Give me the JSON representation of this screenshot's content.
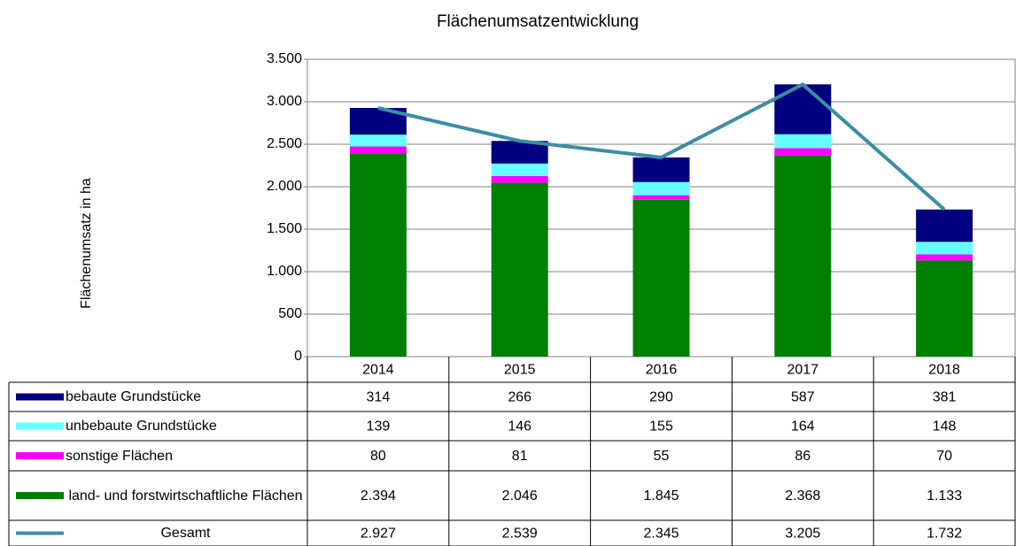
{
  "chart_data": {
    "type": "bar",
    "stacked": true,
    "title": "Flächenumsatzentwicklung",
    "y_label": "Flächenumsatz in ha",
    "categories": [
      "2014",
      "2015",
      "2016",
      "2017",
      "2018"
    ],
    "series": [
      {
        "name": "bebaute Grundstücke",
        "color": "#000080",
        "values": [
          314,
          266,
          290,
          587,
          381
        ]
      },
      {
        "name": "unbebaute Grundstücke",
        "color": "#66ffff",
        "values": [
          139,
          146,
          155,
          164,
          148
        ]
      },
      {
        "name": "sonstige Flächen",
        "color": "#ff00ff",
        "values": [
          80,
          81,
          55,
          86,
          70
        ]
      },
      {
        "name": "land- und forstwirtschaftliche Flächen",
        "color": "#008000",
        "values": [
          2394,
          2046,
          1845,
          2368,
          1133
        ],
        "value_labels": [
          "2.394",
          "2.046",
          "1.845",
          "2.368",
          "1.133"
        ]
      },
      {
        "name": "Gesamt",
        "type": "line",
        "color": "#3a8ea5",
        "values": [
          2927,
          2539,
          2345,
          3205,
          1732
        ],
        "value_labels": [
          "2.927",
          "2.539",
          "2.345",
          "3.205",
          "1.732"
        ]
      }
    ],
    "ylim": [
      0,
      3500
    ],
    "yticks": [
      0,
      500,
      {
        "value": 1000,
        "label": "1.000"
      },
      {
        "value": 1500,
        "label": "1.500"
      },
      {
        "value": 2000,
        "label": "2.000"
      },
      {
        "value": 2500,
        "label": "2.500"
      },
      {
        "value": 3000,
        "label": "3.000"
      },
      {
        "value": 3500,
        "label": "3.500"
      }
    ],
    "grid": true
  }
}
